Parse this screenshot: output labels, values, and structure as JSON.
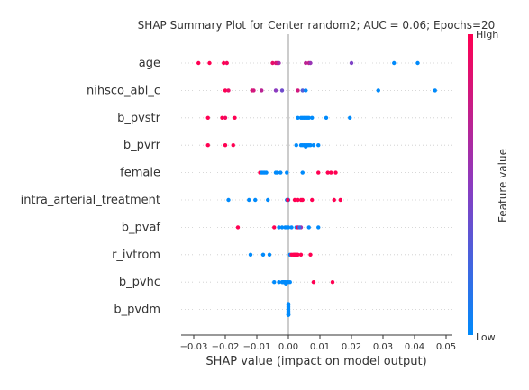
{
  "chart_data": {
    "type": "scatter",
    "title": "SHAP Summary Plot for Center random2; AUC = 0.06; Epochs=20",
    "xlabel": "SHAP value (impact on model output)",
    "xlim": [
      -0.034,
      0.052
    ],
    "xticks": [
      -0.03,
      -0.02,
      -0.01,
      0.0,
      0.01,
      0.02,
      0.03,
      0.04,
      0.05
    ],
    "xtick_labels": [
      "−0.03",
      "−0.02",
      "−0.01",
      "0.00",
      "0.01",
      "0.02",
      "0.03",
      "0.04",
      "0.05"
    ],
    "colorbar": {
      "label": "Feature value",
      "high_label": "High",
      "low_label": "Low",
      "low_color": "#008afb",
      "mid_color": "#8c3bc0",
      "high_color": "#ff0052"
    },
    "features": [
      {
        "name": "age",
        "points": [
          {
            "x": -0.0285,
            "v": 1.0
          },
          {
            "x": -0.025,
            "v": 1.0
          },
          {
            "x": -0.0205,
            "v": 1.0
          },
          {
            "x": -0.0195,
            "v": 0.95
          },
          {
            "x": -0.005,
            "v": 0.9
          },
          {
            "x": -0.004,
            "v": 0.85
          },
          {
            "x": -0.0035,
            "v": 0.8
          },
          {
            "x": -0.003,
            "v": 0.6
          },
          {
            "x": 0.0055,
            "v": 0.7
          },
          {
            "x": 0.0065,
            "v": 0.75
          },
          {
            "x": 0.007,
            "v": 0.55
          },
          {
            "x": 0.02,
            "v": 0.45
          },
          {
            "x": 0.0335,
            "v": 0.0
          },
          {
            "x": 0.041,
            "v": 0.0
          }
        ]
      },
      {
        "name": "nihsco_abl_c",
        "points": [
          {
            "x": -0.02,
            "v": 1.0
          },
          {
            "x": -0.019,
            "v": 0.9
          },
          {
            "x": -0.0115,
            "v": 0.85
          },
          {
            "x": -0.011,
            "v": 0.8
          },
          {
            "x": -0.0085,
            "v": 0.7
          },
          {
            "x": -0.004,
            "v": 0.5
          },
          {
            "x": -0.002,
            "v": 0.4
          },
          {
            "x": 0.003,
            "v": 0.8
          },
          {
            "x": 0.0045,
            "v": 0.3
          },
          {
            "x": 0.0055,
            "v": 0.0
          },
          {
            "x": 0.0285,
            "v": 0.0
          },
          {
            "x": 0.0465,
            "v": 0.0
          }
        ]
      },
      {
        "name": "b_pvstr",
        "points": [
          {
            "x": -0.0255,
            "v": 1.0
          },
          {
            "x": -0.021,
            "v": 1.0
          },
          {
            "x": -0.02,
            "v": 0.95
          },
          {
            "x": -0.017,
            "v": 1.0
          },
          {
            "x": 0.003,
            "v": 0.0
          },
          {
            "x": 0.004,
            "v": 0.0
          },
          {
            "x": 0.0045,
            "v": 0.0
          },
          {
            "x": 0.005,
            "v": 0.0
          },
          {
            "x": 0.0055,
            "v": 0.0
          },
          {
            "x": 0.006,
            "v": 0.0
          },
          {
            "x": 0.0065,
            "v": 0.0
          },
          {
            "x": 0.0075,
            "v": 0.0
          },
          {
            "x": 0.012,
            "v": 0.0
          },
          {
            "x": 0.0195,
            "v": 0.0
          }
        ]
      },
      {
        "name": "b_pvrr",
        "points": [
          {
            "x": -0.0255,
            "v": 1.0
          },
          {
            "x": -0.02,
            "v": 1.0
          },
          {
            "x": -0.0175,
            "v": 1.0
          },
          {
            "x": 0.0025,
            "v": 0.0
          },
          {
            "x": 0.004,
            "v": 0.0
          },
          {
            "x": 0.0045,
            "v": 0.0
          },
          {
            "x": 0.005,
            "v": 0.0
          },
          {
            "x": 0.0055,
            "v": 0.0
          },
          {
            "x": 0.006,
            "v": 0.0
          },
          {
            "x": 0.0065,
            "v": 0.0
          },
          {
            "x": 0.007,
            "v": 0.0
          },
          {
            "x": 0.008,
            "v": 0.0
          },
          {
            "x": 0.0095,
            "v": 0.0
          },
          {
            "x": 0.0055,
            "v": 0.0
          }
        ]
      },
      {
        "name": "female",
        "points": [
          {
            "x": -0.009,
            "v": 1.0
          },
          {
            "x": -0.0085,
            "v": 0.0
          },
          {
            "x": -0.008,
            "v": 0.0
          },
          {
            "x": -0.0075,
            "v": 0.0
          },
          {
            "x": -0.007,
            "v": 0.0
          },
          {
            "x": -0.004,
            "v": 0.0
          },
          {
            "x": -0.0035,
            "v": 0.0
          },
          {
            "x": -0.0025,
            "v": 0.0
          },
          {
            "x": -0.0005,
            "v": 0.0
          },
          {
            "x": 0.0045,
            "v": 0.0
          },
          {
            "x": 0.0095,
            "v": 1.0
          },
          {
            "x": 0.0125,
            "v": 1.0
          },
          {
            "x": 0.0135,
            "v": 1.0
          },
          {
            "x": 0.015,
            "v": 1.0
          }
        ]
      },
      {
        "name": "intra_arterial_treatment",
        "points": [
          {
            "x": -0.019,
            "v": 0.0
          },
          {
            "x": -0.0125,
            "v": 0.0
          },
          {
            "x": -0.0105,
            "v": 0.0
          },
          {
            "x": -0.0065,
            "v": 0.0
          },
          {
            "x": -0.0005,
            "v": 0.0
          },
          {
            "x": 0.0,
            "v": 0.0
          },
          {
            "x": -0.0002,
            "v": 1.0
          },
          {
            "x": 0.002,
            "v": 1.0
          },
          {
            "x": 0.003,
            "v": 1.0
          },
          {
            "x": 0.004,
            "v": 1.0
          },
          {
            "x": 0.0045,
            "v": 1.0
          },
          {
            "x": 0.0075,
            "v": 1.0
          },
          {
            "x": 0.0145,
            "v": 1.0
          },
          {
            "x": 0.0165,
            "v": 1.0
          }
        ]
      },
      {
        "name": "b_pvaf",
        "points": [
          {
            "x": -0.016,
            "v": 1.0
          },
          {
            "x": -0.0045,
            "v": 1.0
          },
          {
            "x": -0.003,
            "v": 0.0
          },
          {
            "x": -0.002,
            "v": 0.0
          },
          {
            "x": -0.001,
            "v": 0.0
          },
          {
            "x": 0.0,
            "v": 0.0
          },
          {
            "x": 0.001,
            "v": 0.0
          },
          {
            "x": 0.0025,
            "v": 0.0
          },
          {
            "x": 0.003,
            "v": 1.0
          },
          {
            "x": 0.004,
            "v": 0.6
          },
          {
            "x": 0.0065,
            "v": 0.0
          },
          {
            "x": 0.0095,
            "v": 0.0
          },
          {
            "x": 0.0035,
            "v": 0.2
          },
          {
            "x": -0.0005,
            "v": 0.0
          }
        ]
      },
      {
        "name": "r_ivtrom",
        "points": [
          {
            "x": -0.012,
            "v": 0.0
          },
          {
            "x": -0.008,
            "v": 0.0
          },
          {
            "x": -0.006,
            "v": 0.0
          },
          {
            "x": 0.0005,
            "v": 0.0
          },
          {
            "x": 0.001,
            "v": 1.0
          },
          {
            "x": 0.0015,
            "v": 1.0
          },
          {
            "x": 0.002,
            "v": 1.0
          },
          {
            "x": 0.0025,
            "v": 1.0
          },
          {
            "x": 0.003,
            "v": 1.0
          },
          {
            "x": 0.004,
            "v": 1.0
          },
          {
            "x": 0.007,
            "v": 1.0
          },
          {
            "x": 0.0028,
            "v": 1.0
          },
          {
            "x": 0.0022,
            "v": 1.0
          },
          {
            "x": 0.0018,
            "v": 1.0
          }
        ]
      },
      {
        "name": "b_pvhc",
        "points": [
          {
            "x": -0.0045,
            "v": 0.0
          },
          {
            "x": -0.003,
            "v": 0.0
          },
          {
            "x": -0.002,
            "v": 0.0
          },
          {
            "x": -0.0015,
            "v": 0.0
          },
          {
            "x": -0.001,
            "v": 0.0
          },
          {
            "x": -0.0005,
            "v": 0.0
          },
          {
            "x": 0.0,
            "v": 0.0
          },
          {
            "x": 0.0005,
            "v": 0.0
          },
          {
            "x": -0.0018,
            "v": 0.0
          },
          {
            "x": -0.0012,
            "v": 0.0
          },
          {
            "x": -0.0008,
            "v": 0.0
          },
          {
            "x": -0.0003,
            "v": 0.0
          },
          {
            "x": 0.008,
            "v": 1.0
          },
          {
            "x": 0.014,
            "v": 1.0
          }
        ]
      },
      {
        "name": "b_pvdm",
        "points": [
          {
            "x": 0.0,
            "v": 0.0
          },
          {
            "x": 0.0,
            "v": 0.0
          },
          {
            "x": 0.0,
            "v": 0.0
          },
          {
            "x": 0.0,
            "v": 0.0
          },
          {
            "x": 0.0,
            "v": 0.0
          },
          {
            "x": 0.0,
            "v": 0.0
          },
          {
            "x": 0.0,
            "v": 0.0
          },
          {
            "x": 0.0,
            "v": 0.0
          },
          {
            "x": 0.0,
            "v": 0.0
          },
          {
            "x": 0.0,
            "v": 0.0
          },
          {
            "x": 0.0,
            "v": 0.0
          },
          {
            "x": 0.0,
            "v": 0.0
          },
          {
            "x": 0.0,
            "v": 0.0
          },
          {
            "x": 0.0,
            "v": 0.0
          }
        ]
      }
    ]
  }
}
